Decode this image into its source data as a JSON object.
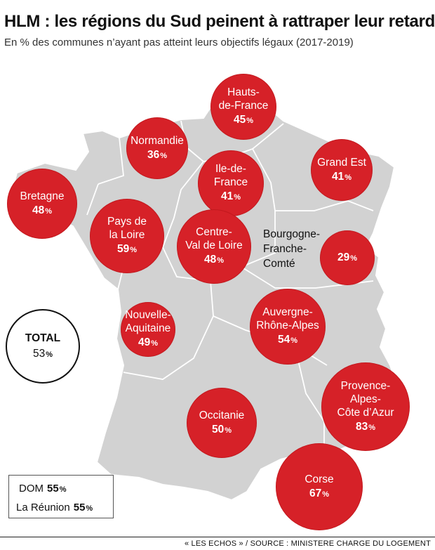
{
  "header": {
    "title": "HLM : les régions du Sud peinent à rattraper leur retard",
    "subtitle": "En % des communes n’ayant pas atteint leurs objectifs légaux (2017-2019)"
  },
  "colors": {
    "bubble": "#d62128",
    "map_fill": "#d2d2d2",
    "map_border": "#ffffff",
    "background": "#ffffff"
  },
  "unit": "%",
  "regions": [
    {
      "name": "Hauts-\nde-France",
      "value": "45"
    },
    {
      "name": "Normandie",
      "value": "36"
    },
    {
      "name": "Ile-de-\nFrance",
      "value": "41"
    },
    {
      "name": "Grand Est",
      "value": "41"
    },
    {
      "name": "Bretagne",
      "value": "48"
    },
    {
      "name": "Pays de\nla Loire",
      "value": "59"
    },
    {
      "name": "Centre-\nVal de Loire",
      "value": "48"
    },
    {
      "name": "Bourgogne-\nFranche-\nComté",
      "value": "29"
    },
    {
      "name": "Nouvelle-\nAquitaine",
      "value": "49"
    },
    {
      "name": "Auvergne-\nRhône-Alpes",
      "value": "54"
    },
    {
      "name": "Provence-\nAlpes-\nCôte d’Azur",
      "value": "83"
    },
    {
      "name": "Occitanie",
      "value": "50"
    },
    {
      "name": "Corse",
      "value": "67"
    }
  ],
  "total": {
    "label": "TOTAL",
    "value": "53"
  },
  "overseas": [
    {
      "name": "DOM",
      "value": "55"
    },
    {
      "name": "La Réunion",
      "value": "55"
    }
  ],
  "source": "« LES ECHOS » / SOURCE : MINISTERE CHARGE DU LOGEMENT"
}
